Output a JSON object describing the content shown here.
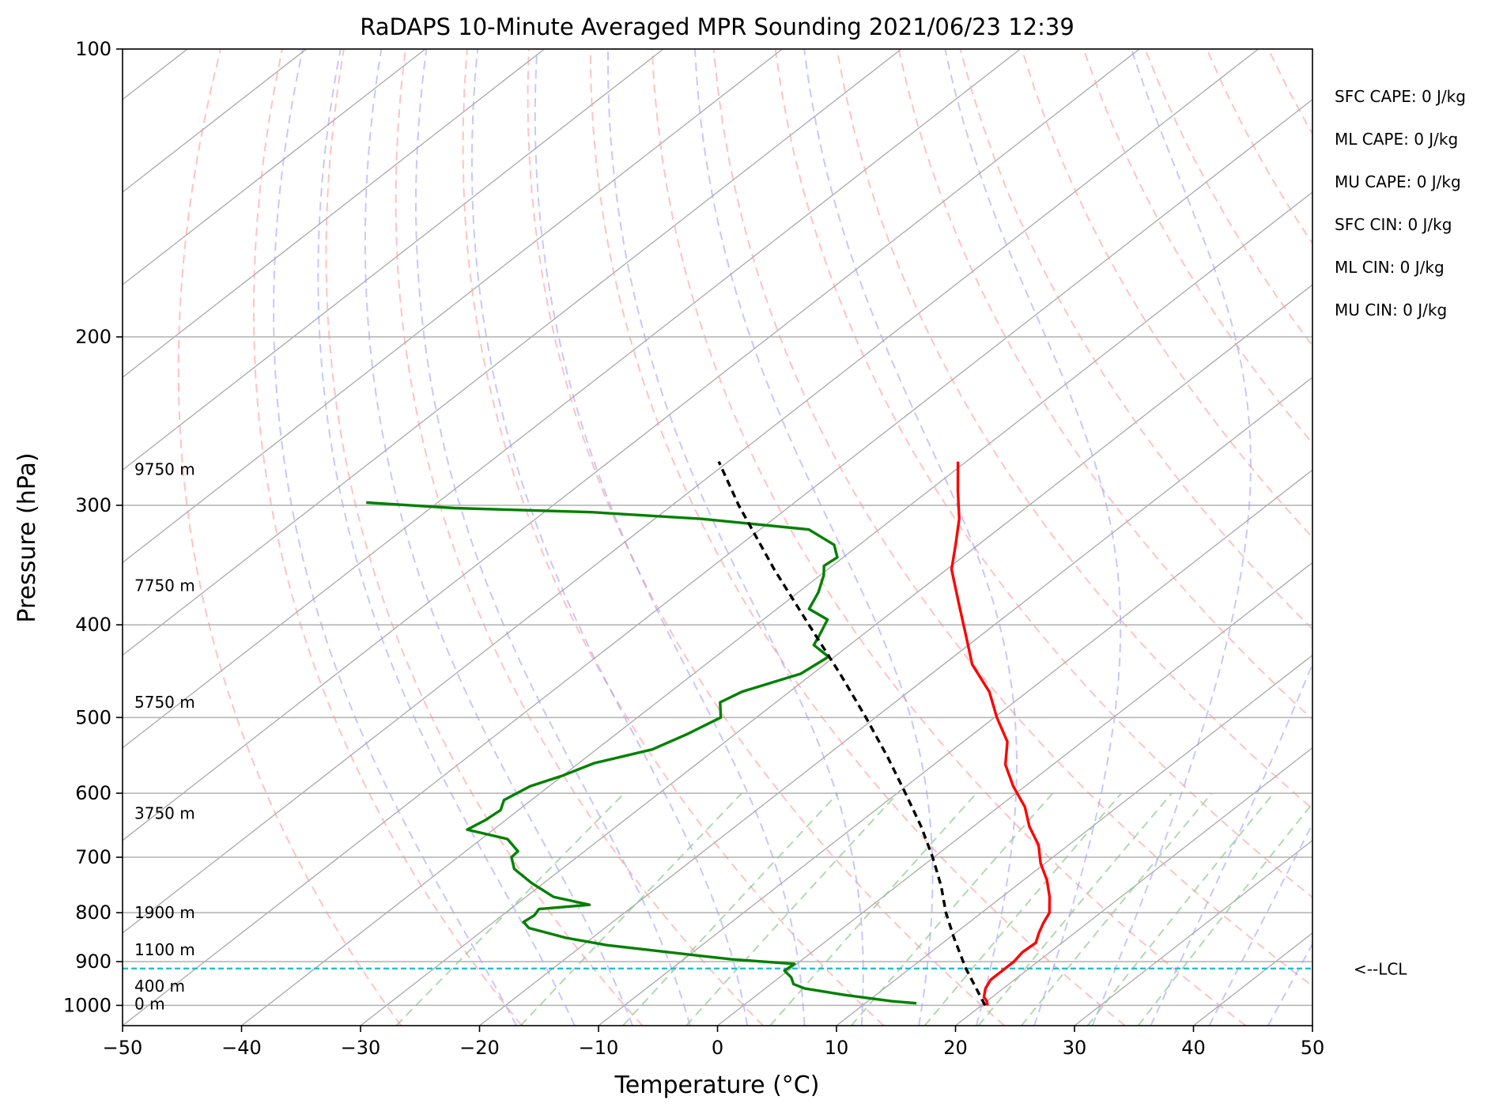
{
  "chart_data": {
    "type": "skew-t",
    "title": "RaDAPS 10-Minute Averaged MPR Sounding 2021/06/23 12:39",
    "xlabel": "Temperature (°C)",
    "ylabel": "Pressure (hPa)",
    "xlim": [
      -50,
      50
    ],
    "ylim": [
      1050,
      100
    ],
    "log_y": true,
    "grid": true,
    "x_ticks": [
      -50,
      -40,
      -30,
      -20,
      -10,
      0,
      10,
      20,
      30,
      40,
      50
    ],
    "x_tick_labels": [
      "−50",
      "−40",
      "−30",
      "−20",
      "−10",
      "0",
      "10",
      "20",
      "30",
      "40",
      "50"
    ],
    "y_ticks": [
      100,
      200,
      300,
      400,
      500,
      600,
      700,
      800,
      900,
      1000
    ],
    "y_tick_labels": [
      "100",
      "200",
      "300",
      "400",
      "500",
      "600",
      "700",
      "800",
      "900",
      "1000"
    ],
    "colors": {
      "temperature": "#ff0000",
      "dewpoint": "#008000",
      "parcel": "#000000",
      "lcl": "#17becf",
      "isotherm": "#a9a9a9",
      "dry_adiabat": "#ff9999",
      "moist_adiabat": "#9999ff",
      "mixing_ratio": "#8fc98f"
    },
    "height_labels": [
      {
        "label": "0 m",
        "p": 996
      },
      {
        "label": "400 m",
        "p": 955
      },
      {
        "label": "1100 m",
        "p": 875
      },
      {
        "label": "1900 m",
        "p": 800
      },
      {
        "label": "3750 m",
        "p": 630
      },
      {
        "label": "5750 m",
        "p": 482
      },
      {
        "label": "7750 m",
        "p": 364
      },
      {
        "label": "9750 m",
        "p": 275
      }
    ],
    "lcl": {
      "label": "<--LCL",
      "p": 915
    },
    "stats": [
      "SFC CAPE: 0 J/kg",
      "ML CAPE: 0 J/kg",
      "MU CAPE: 0 J/kg",
      "SFC CIN: 0 J/kg",
      "ML CIN: 0 J/kg",
      "MU CIN: 0 J/kg"
    ],
    "series": [
      {
        "name": "",
        "role": "temperature",
        "p": [
          1000,
          990,
          980,
          960,
          940,
          920,
          900,
          880,
          860,
          840,
          820,
          800,
          770,
          740,
          710,
          680,
          650,
          620,
          590,
          560,
          530,
          500,
          470,
          440,
          410,
          380,
          350,
          330,
          310,
          290,
          270
        ],
        "t": [
          20.5,
          20.0,
          19.3,
          18.5,
          18.0,
          18.0,
          18.0,
          17.7,
          17.8,
          17.0,
          16.3,
          15.7,
          14.0,
          12.0,
          9.6,
          7.5,
          4.7,
          2.2,
          -1.0,
          -4.0,
          -6.3,
          -9.8,
          -13.2,
          -17.6,
          -21.3,
          -25.3,
          -29.6,
          -31.9,
          -34.4,
          -37.5,
          -40.7
        ]
      },
      {
        "name": "",
        "role": "dewpoint",
        "p": [
          995,
          990,
          975,
          960,
          950,
          935,
          920,
          905,
          895,
          880,
          865,
          850,
          830,
          818,
          805,
          793,
          785,
          770,
          745,
          720,
          700,
          690,
          670,
          655,
          640,
          625,
          610,
          590,
          575,
          558,
          540,
          520,
          500,
          482,
          470,
          450,
          432,
          420,
          410,
          395,
          385,
          370,
          355,
          347,
          340,
          330,
          318,
          310,
          305,
          302,
          298
        ],
        "t": [
          14.3,
          12.0,
          7.3,
          3.3,
          1.9,
          1.0,
          -0.3,
          -0.2,
          -6.0,
          -12.0,
          -18.0,
          -22.2,
          -26.4,
          -27.5,
          -27.3,
          -27.6,
          -23.8,
          -27.7,
          -31.0,
          -34.0,
          -35.5,
          -35.6,
          -37.8,
          -42.2,
          -41.7,
          -41.5,
          -42.3,
          -41.6,
          -40.0,
          -38.7,
          -35.3,
          -34.0,
          -33.0,
          -34.7,
          -34.0,
          -31.0,
          -30.5,
          -33.0,
          -33.6,
          -34.6,
          -37.3,
          -38.3,
          -39.7,
          -40.7,
          -40.5,
          -42.1,
          -45.9,
          -56.0,
          -66.0,
          -78.0,
          -86.0
        ]
      },
      {
        "name": "",
        "role": "parcel",
        "p": [
          1000,
          915,
          850,
          800,
          750,
          700,
          650,
          600,
          550,
          500,
          450,
          400,
          350,
          300,
          270
        ],
        "t": [
          20.3,
          14.7,
          10.4,
          7.0,
          3.7,
          -0.1,
          -4.4,
          -9.3,
          -14.7,
          -20.8,
          -27.7,
          -35.6,
          -44.5,
          -54.4,
          -60.8
        ]
      }
    ]
  }
}
